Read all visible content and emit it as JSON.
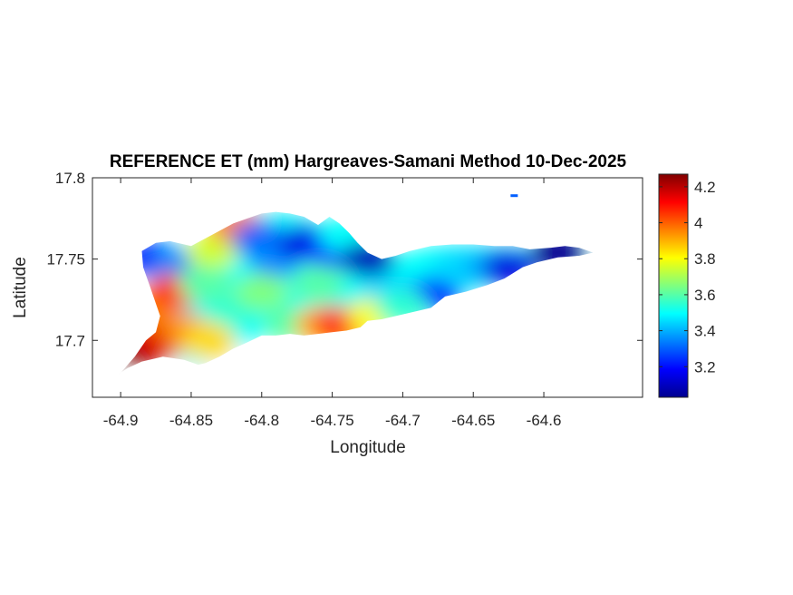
{
  "title": "REFERENCE ET (mm) Hargreaves-Samani Method  10-Dec-2025",
  "xlabel": "Longitude",
  "ylabel": "Latitude",
  "chart_data": {
    "type": "heatmap",
    "title": "REFERENCE ET (mm) Hargreaves-Samani Method  10-Dec-2025",
    "xlabel": "Longitude",
    "ylabel": "Latitude",
    "xlim": [
      -64.92,
      -64.53
    ],
    "ylim": [
      17.665,
      17.8
    ],
    "xticks": [
      -64.9,
      -64.85,
      -64.8,
      -64.75,
      -64.7,
      -64.65,
      -64.6
    ],
    "xtick_labels": [
      "-64.9",
      "-64.85",
      "-64.8",
      "-64.75",
      "-64.7",
      "-64.65",
      "-64.6"
    ],
    "yticks": [
      17.7,
      17.75,
      17.8
    ],
    "ytick_labels": [
      "17.7",
      "17.75",
      "17.8"
    ],
    "colorbar": {
      "colormap": "jet",
      "range": [
        3.03,
        4.27
      ],
      "ticks": [
        3.2,
        3.4,
        3.6,
        3.8,
        4.0,
        4.2
      ],
      "tick_labels": [
        "3.2",
        "3.4",
        "3.6",
        "3.8",
        "4",
        "4.2"
      ]
    },
    "grid": false,
    "outline": [
      [
        -64.9,
        17.68
      ],
      [
        -64.89,
        17.69
      ],
      [
        -64.882,
        17.7
      ],
      [
        -64.875,
        17.705
      ],
      [
        -64.872,
        17.715
      ],
      [
        -64.876,
        17.725
      ],
      [
        -64.88,
        17.735
      ],
      [
        -64.884,
        17.745
      ],
      [
        -64.885,
        17.755
      ],
      [
        -64.875,
        17.76
      ],
      [
        -64.865,
        17.761
      ],
      [
        -64.85,
        17.758
      ],
      [
        -64.835,
        17.765
      ],
      [
        -64.82,
        17.772
      ],
      [
        -64.81,
        17.775
      ],
      [
        -64.8,
        17.778
      ],
      [
        -64.79,
        17.779
      ],
      [
        -64.78,
        17.778
      ],
      [
        -64.77,
        17.776
      ],
      [
        -64.76,
        17.771
      ],
      [
        -64.752,
        17.776
      ],
      [
        -64.745,
        17.772
      ],
      [
        -64.738,
        17.766
      ],
      [
        -64.732,
        17.76
      ],
      [
        -64.725,
        17.754
      ],
      [
        -64.715,
        17.75
      ],
      [
        -64.705,
        17.752
      ],
      [
        -64.695,
        17.755
      ],
      [
        -64.68,
        17.758
      ],
      [
        -64.665,
        17.759
      ],
      [
        -64.65,
        17.759
      ],
      [
        -64.635,
        17.758
      ],
      [
        -64.622,
        17.758
      ],
      [
        -64.61,
        17.756
      ],
      [
        -64.595,
        17.757
      ],
      [
        -64.585,
        17.758
      ],
      [
        -64.575,
        17.757
      ],
      [
        -64.565,
        17.754
      ],
      [
        -64.575,
        17.752
      ],
      [
        -64.59,
        17.751
      ],
      [
        -64.605,
        17.748
      ],
      [
        -64.615,
        17.745
      ],
      [
        -64.628,
        17.738
      ],
      [
        -64.64,
        17.734
      ],
      [
        -64.655,
        17.73
      ],
      [
        -64.67,
        17.727
      ],
      [
        -64.68,
        17.72
      ],
      [
        -64.69,
        17.718
      ],
      [
        -64.7,
        17.716
      ],
      [
        -64.715,
        17.713
      ],
      [
        -64.725,
        17.712
      ],
      [
        -64.73,
        17.708
      ],
      [
        -64.74,
        17.706
      ],
      [
        -64.75,
        17.705
      ],
      [
        -64.76,
        17.704
      ],
      [
        -64.77,
        17.703
      ],
      [
        -64.78,
        17.704
      ],
      [
        -64.79,
        17.703
      ],
      [
        -64.8,
        17.703
      ],
      [
        -64.812,
        17.698
      ],
      [
        -64.82,
        17.695
      ],
      [
        -64.83,
        17.69
      ],
      [
        -64.84,
        17.686
      ],
      [
        -64.845,
        17.685
      ],
      [
        -64.855,
        17.688
      ],
      [
        -64.87,
        17.69
      ],
      [
        -64.885,
        17.687
      ],
      [
        -64.895,
        17.683
      ],
      [
        -64.902,
        17.679
      ]
    ],
    "islet": [
      -64.621,
      17.789
    ],
    "zones": [
      {
        "lon": -64.878,
        "lat": 17.75,
        "value": 3.2
      },
      {
        "lon": -64.86,
        "lat": 17.746,
        "value": 3.35
      },
      {
        "lon": -64.835,
        "lat": 17.755,
        "value": 3.75
      },
      {
        "lon": -64.818,
        "lat": 17.77,
        "value": 3.95
      },
      {
        "lon": -64.802,
        "lat": 17.762,
        "value": 3.3
      },
      {
        "lon": -64.79,
        "lat": 17.75,
        "value": 3.35
      },
      {
        "lon": -64.77,
        "lat": 17.76,
        "value": 3.15
      },
      {
        "lon": -64.75,
        "lat": 17.755,
        "value": 3.2
      },
      {
        "lon": -64.74,
        "lat": 17.765,
        "value": 3.5
      },
      {
        "lon": -64.725,
        "lat": 17.75,
        "value": 3.1
      },
      {
        "lon": -64.71,
        "lat": 17.73,
        "value": 3.45
      },
      {
        "lon": -64.678,
        "lat": 17.728,
        "value": 3.2
      },
      {
        "lon": -64.66,
        "lat": 17.745,
        "value": 3.45
      },
      {
        "lon": -64.64,
        "lat": 17.745,
        "value": 3.4
      },
      {
        "lon": -64.625,
        "lat": 17.745,
        "value": 3.15
      },
      {
        "lon": -64.59,
        "lat": 17.754,
        "value": 3.05
      },
      {
        "lon": -64.878,
        "lat": 17.72,
        "value": 3.95
      },
      {
        "lon": -64.862,
        "lat": 17.73,
        "value": 4.05
      },
      {
        "lon": -64.885,
        "lat": 17.695,
        "value": 4.25
      },
      {
        "lon": -64.872,
        "lat": 17.7,
        "value": 4.15
      },
      {
        "lon": -64.853,
        "lat": 17.705,
        "value": 3.95
      },
      {
        "lon": -64.838,
        "lat": 17.7,
        "value": 3.85
      },
      {
        "lon": -64.82,
        "lat": 17.72,
        "value": 3.55
      },
      {
        "lon": -64.8,
        "lat": 17.73,
        "value": 3.65
      },
      {
        "lon": -64.78,
        "lat": 17.71,
        "value": 3.6
      },
      {
        "lon": -64.758,
        "lat": 17.71,
        "value": 3.9
      },
      {
        "lon": -64.745,
        "lat": 17.71,
        "value": 4.05
      },
      {
        "lon": -64.72,
        "lat": 17.715,
        "value": 3.8
      },
      {
        "lon": -64.7,
        "lat": 17.72,
        "value": 3.55
      },
      {
        "lon": -64.76,
        "lat": 17.735,
        "value": 3.6
      },
      {
        "lon": -64.84,
        "lat": 17.735,
        "value": 3.6
      }
    ]
  }
}
